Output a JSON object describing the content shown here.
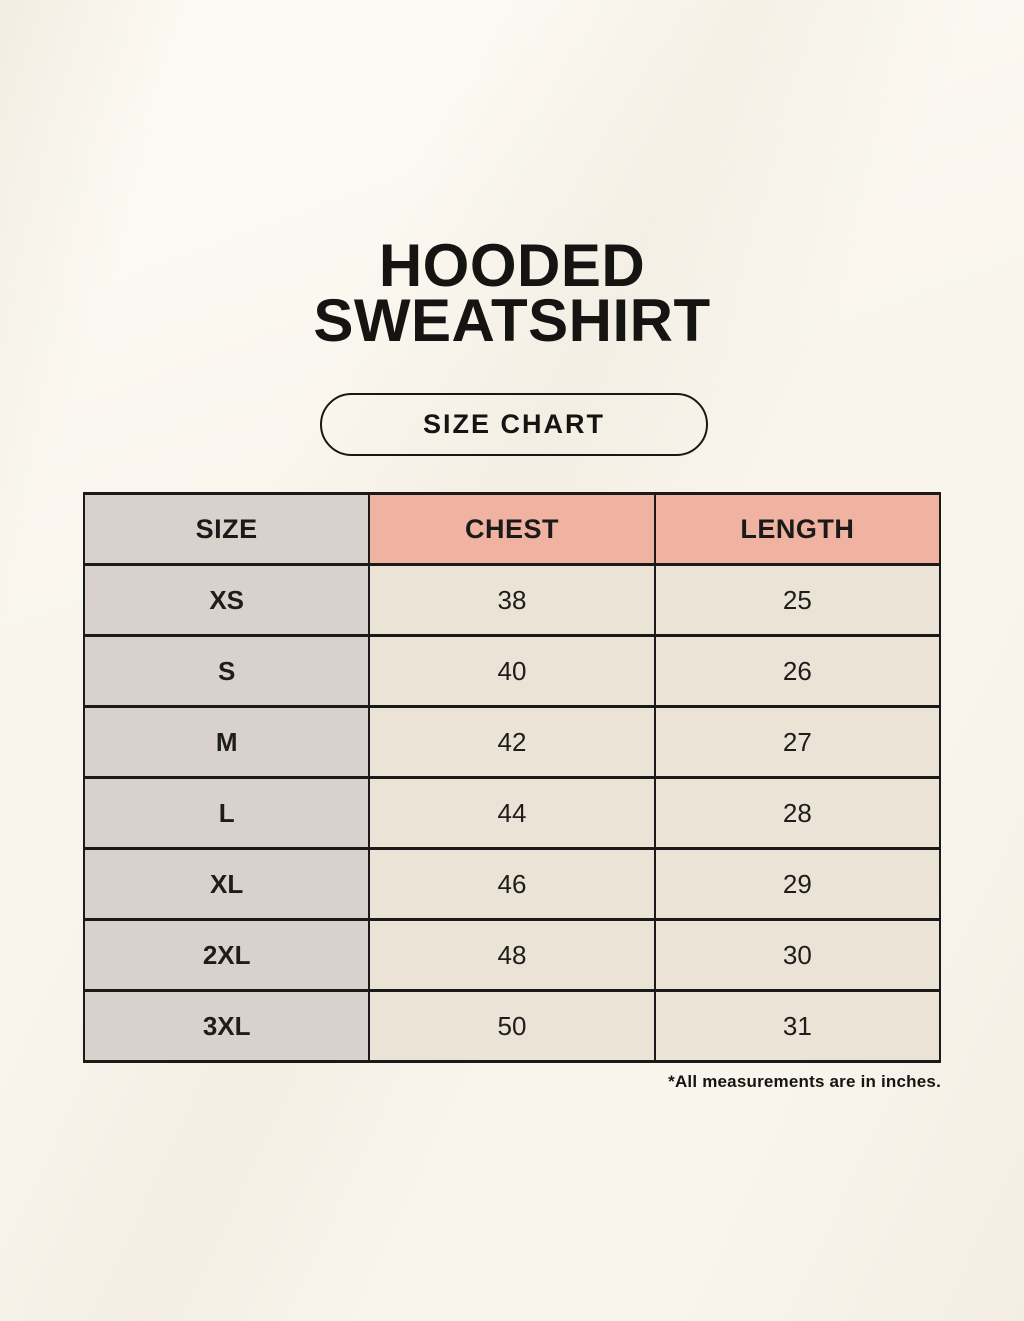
{
  "header": {
    "title_line1": "HOODED",
    "title_line2": "SWEATSHIRT",
    "button_label": "SIZE CHART"
  },
  "chart_data": {
    "type": "table",
    "title": "HOODED SWEATSHIRT — SIZE CHART",
    "columns": [
      "SIZE",
      "CHEST",
      "LENGTH"
    ],
    "rows": [
      [
        "XS",
        "38",
        "25"
      ],
      [
        "S",
        "40",
        "26"
      ],
      [
        "M",
        "42",
        "27"
      ],
      [
        "L",
        "44",
        "28"
      ],
      [
        "XL",
        "46",
        "29"
      ],
      [
        "2XL",
        "48",
        "30"
      ],
      [
        "3XL",
        "50",
        "31"
      ]
    ],
    "units": "inches"
  },
  "footer": {
    "note": "*All measurements are in inches."
  },
  "colors": {
    "background": "#f9f5ed",
    "table_border": "#1c1a18",
    "size_column_bg": "#d9d2cc",
    "accent_header_bg": "#f0b2a1",
    "data_cell_bg": "#eae3d6",
    "text": "#1a1a1a"
  }
}
